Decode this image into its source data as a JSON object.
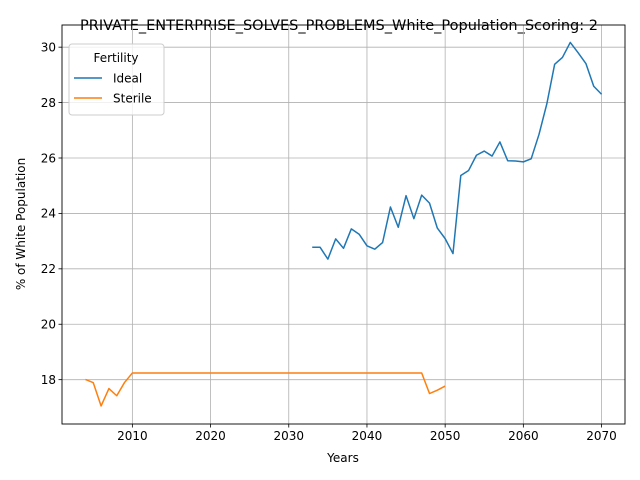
{
  "chart_data": {
    "type": "line",
    "title": "PRIVATE_ENTERPRISE_SOLVES_PROBLEMS_White_Population_Scoring: 2",
    "xlabel": "Years",
    "ylabel": "% of White Population",
    "xlim": [
      2001,
      2073
    ],
    "ylim": [
      16.4,
      30.8
    ],
    "xticks": [
      2010,
      2020,
      2030,
      2040,
      2050,
      2060,
      2070
    ],
    "yticks": [
      18,
      20,
      22,
      24,
      26,
      28,
      30
    ],
    "xtick_labels": [
      "2010",
      "2020",
      "2030",
      "2040",
      "2050",
      "2060",
      "2070"
    ],
    "ytick_labels": [
      "18",
      "20",
      "22",
      "24",
      "26",
      "28",
      "30"
    ],
    "grid": true,
    "legend": {
      "title": "Fertility",
      "placement": "top-left"
    },
    "series": [
      {
        "name": "Ideal",
        "color": "#1f77b4",
        "x": [
          2033,
          2034,
          2035,
          2036,
          2037,
          2038,
          2039,
          2040,
          2041,
          2042,
          2043,
          2044,
          2045,
          2046,
          2047,
          2048,
          2049,
          2050,
          2051,
          2052,
          2053,
          2054,
          2055,
          2056,
          2057,
          2058,
          2059,
          2060,
          2061,
          2062,
          2063,
          2064,
          2065,
          2066,
          2067,
          2068,
          2069,
          2070
        ],
        "y": [
          22.78,
          22.78,
          22.35,
          23.08,
          22.74,
          23.44,
          23.25,
          22.83,
          22.71,
          22.95,
          24.23,
          23.5,
          24.64,
          23.81,
          24.66,
          24.37,
          23.47,
          23.09,
          22.55,
          25.37,
          25.55,
          26.1,
          26.25,
          26.07,
          26.58,
          25.9,
          25.89,
          25.86,
          25.97,
          26.85,
          27.95,
          29.38,
          29.63,
          30.17,
          29.8,
          29.41,
          28.59,
          28.3
        ]
      },
      {
        "name": "Sterile",
        "color": "#ff7f0e",
        "x": [
          2004,
          2005,
          2006,
          2007,
          2008,
          2009,
          2010,
          2011,
          2012,
          2013,
          2014,
          2015,
          2016,
          2017,
          2018,
          2019,
          2020,
          2021,
          2022,
          2023,
          2024,
          2025,
          2026,
          2027,
          2028,
          2029,
          2030,
          2031,
          2032,
          2033,
          2034,
          2035,
          2036,
          2037,
          2038,
          2039,
          2040,
          2041,
          2042,
          2043,
          2044,
          2045,
          2046,
          2047,
          2048,
          2049,
          2050
        ],
        "y": [
          18.01,
          17.89,
          17.05,
          17.68,
          17.42,
          17.9,
          18.24,
          18.24,
          18.24,
          18.24,
          18.24,
          18.24,
          18.24,
          18.24,
          18.24,
          18.24,
          18.24,
          18.24,
          18.24,
          18.24,
          18.24,
          18.24,
          18.24,
          18.24,
          18.24,
          18.24,
          18.24,
          18.24,
          18.24,
          18.24,
          18.24,
          18.24,
          18.24,
          18.24,
          18.24,
          18.24,
          18.24,
          18.24,
          18.24,
          18.24,
          18.24,
          18.24,
          18.24,
          18.24,
          17.5,
          17.62,
          17.77
        ]
      }
    ]
  }
}
